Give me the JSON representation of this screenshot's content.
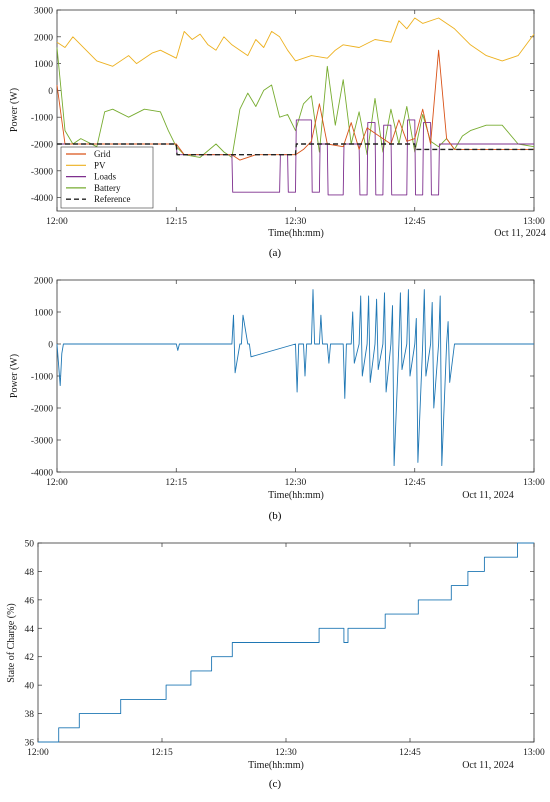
{
  "colors": {
    "grid": "#d95319",
    "pv": "#edb120",
    "loads": "#7e2f8e",
    "battery": "#77ac30",
    "reference": "#222222",
    "panel_b": "#1f77b4",
    "panel_c": "#1f77b4"
  },
  "chart_data": [
    {
      "type": "line",
      "caption": "(a)",
      "xlabel": "Time(hh:mm)",
      "ylabel": "Power (W)",
      "date_label": "Oct 11, 2024",
      "xlim": [
        "12:00",
        "13:00"
      ],
      "ylim": [
        -4500,
        3000
      ],
      "x_ticks": [
        "12:00",
        "12:15",
        "12:30",
        "12:45",
        "13:00"
      ],
      "y_ticks": [
        -4000,
        -3000,
        -2000,
        -1000,
        0,
        1000,
        2000,
        3000
      ],
      "legend_position": "bottom-left",
      "series": [
        {
          "name": "Grid",
          "x": [
            "12:00",
            "12:01",
            "12:05",
            "12:10",
            "12:15",
            "12:16",
            "12:20",
            "12:22",
            "12:23",
            "12:25",
            "12:28",
            "12:30",
            "12:31",
            "12:32",
            "12:33",
            "12:34",
            "12:36",
            "12:37",
            "12:38",
            "12:39",
            "12:40",
            "12:41",
            "12:42",
            "12:43",
            "12:44",
            "12:45",
            "12:46",
            "12:47",
            "12:48",
            "12:49",
            "12:50",
            "12:55",
            "13:00"
          ],
          "y": [
            200,
            -2000,
            -2000,
            -2000,
            -2000,
            -2400,
            -2400,
            -2400,
            -2600,
            -2400,
            -2400,
            -2400,
            -2200,
            -1900,
            -500,
            -2000,
            -2100,
            -1200,
            -2200,
            -1400,
            -1600,
            -1800,
            -2000,
            -1100,
            -1900,
            -1800,
            -700,
            -2000,
            1500,
            -1800,
            -2200,
            -2200,
            -2200
          ]
        },
        {
          "name": "PV",
          "x": [
            "12:00",
            "12:01",
            "12:02",
            "12:03",
            "12:05",
            "12:07",
            "12:09",
            "12:10",
            "12:12",
            "12:13",
            "12:15",
            "12:16",
            "12:17",
            "12:18",
            "12:19",
            "12:20",
            "12:21",
            "12:22",
            "12:23",
            "12:24",
            "12:25",
            "12:26",
            "12:27",
            "12:28",
            "12:29",
            "12:30",
            "12:32",
            "12:34",
            "12:35",
            "12:36",
            "12:38",
            "12:40",
            "12:42",
            "12:43",
            "12:44",
            "12:45",
            "12:46",
            "12:48",
            "12:50",
            "12:52",
            "12:54",
            "12:56",
            "12:58",
            "13:00"
          ],
          "y": [
            1800,
            1600,
            2000,
            1700,
            1100,
            900,
            1300,
            1000,
            1400,
            1500,
            1200,
            2200,
            1900,
            2100,
            1700,
            1500,
            2000,
            1700,
            1500,
            1300,
            1900,
            1600,
            2200,
            2000,
            1500,
            1100,
            1300,
            1200,
            1500,
            1700,
            1600,
            1900,
            1800,
            2600,
            2300,
            2700,
            2500,
            2700,
            2300,
            1700,
            1300,
            1100,
            1300,
            2100
          ]
        },
        {
          "name": "Loads",
          "x": [
            "12:00",
            "12:15",
            "12:15.1",
            "12:22",
            "12:22.1",
            "12:28",
            "12:28.1",
            "12:29",
            "12:29.1",
            "12:30",
            "12:30.1",
            "12:32",
            "12:32.1",
            "12:33",
            "12:33.1",
            "12:34",
            "12:34.1",
            "12:36",
            "12:36.1",
            "12:38",
            "12:38.1",
            "12:39",
            "12:39.1",
            "12:40",
            "12:40.1",
            "12:41",
            "12:41.1",
            "12:42",
            "12:42.1",
            "12:44",
            "12:44.1",
            "12:45",
            "12:45.1",
            "12:46",
            "12:46.1",
            "12:47",
            "12:47.1",
            "12:48",
            "12:48.1",
            "12:49",
            "12:49.1",
            "13:00"
          ],
          "y": [
            -2000,
            -2000,
            -2400,
            -2400,
            -3800,
            -3800,
            -2400,
            -2400,
            -3800,
            -3800,
            -1100,
            -1100,
            -3800,
            -3800,
            -2000,
            -2000,
            -3900,
            -3900,
            -2000,
            -2000,
            -3900,
            -3900,
            -1200,
            -1200,
            -3900,
            -3900,
            -1300,
            -1300,
            -3900,
            -3900,
            -1100,
            -1100,
            -3900,
            -3900,
            -1200,
            -1200,
            -3900,
            -3900,
            -2000,
            -2000,
            -2000,
            -2000
          ]
        },
        {
          "name": "Battery",
          "x": [
            "12:00",
            "12:01",
            "12:02",
            "12:03",
            "12:05",
            "12:06",
            "12:07",
            "12:09",
            "12:11",
            "12:13",
            "12:14",
            "12:15",
            "12:16",
            "12:18",
            "12:20",
            "12:21",
            "12:22",
            "12:23",
            "12:24",
            "12:25",
            "12:26",
            "12:27",
            "12:28",
            "12:29",
            "12:30",
            "12:31",
            "12:32",
            "12:33",
            "12:34",
            "12:35",
            "12:36",
            "12:37",
            "12:38",
            "12:39",
            "12:40",
            "12:41",
            "12:42",
            "12:43",
            "12:44",
            "12:45",
            "12:46",
            "12:47",
            "12:48",
            "12:49",
            "12:50",
            "12:51",
            "12:52",
            "12:54",
            "12:56",
            "12:58",
            "13:00"
          ],
          "y": [
            1600,
            -1500,
            -2000,
            -1800,
            -2100,
            -800,
            -700,
            -1000,
            -700,
            -800,
            -1500,
            -2100,
            -2400,
            -2500,
            -2000,
            -2300,
            -2500,
            -700,
            -100,
            -600,
            0,
            200,
            -1000,
            -900,
            -1500,
            -500,
            -200,
            -2300,
            900,
            -1300,
            400,
            -2000,
            -800,
            -2400,
            -300,
            -2300,
            -700,
            -2000,
            -600,
            -2300,
            -900,
            -1900,
            -2100,
            -1800,
            -2200,
            -1700,
            -1500,
            -1300,
            -1300,
            -2000,
            -2100
          ]
        },
        {
          "name": "Reference",
          "x": [
            "12:00",
            "12:15",
            "12:15.1",
            "12:30",
            "12:30.1",
            "12:45",
            "12:45.1",
            "13:00"
          ],
          "y": [
            -2000,
            -2000,
            -2400,
            -2400,
            -2000,
            -2000,
            -2200,
            -2200
          ]
        }
      ]
    },
    {
      "type": "line",
      "caption": "(b)",
      "xlabel": "Time(hh:mm)",
      "ylabel": "Power (W)",
      "date_label": "Oct 11, 2024",
      "xlim": [
        "12:00",
        "13:00"
      ],
      "ylim": [
        -4000,
        2000
      ],
      "x_ticks": [
        "12:00",
        "12:15",
        "12:30",
        "12:45",
        "13:00"
      ],
      "y_ticks": [
        -4000,
        -3000,
        -2000,
        -1000,
        0,
        1000,
        2000
      ],
      "series": [
        {
          "x": [
            "12:00",
            "12:00.4",
            "12:00.6",
            "12:00.8",
            "12:01",
            "12:15",
            "12:15.2",
            "12:15.4",
            "12:22",
            "12:22.2",
            "12:22.4",
            "12:23",
            "12:23.2",
            "12:23.4",
            "12:24",
            "12:24.2",
            "12:24.4",
            "12:30",
            "12:30.2",
            "12:30.4",
            "12:31",
            "12:31.2",
            "12:31.4",
            "12:32",
            "12:32.2",
            "12:32.4",
            "12:33",
            "12:33.2",
            "12:33.4",
            "12:34",
            "12:34.2",
            "12:34.4",
            "12:36",
            "12:36.2",
            "12:36.4",
            "12:37",
            "12:37.2",
            "12:37.4",
            "12:38",
            "12:38.2",
            "12:38.4",
            "12:39",
            "12:39.2",
            "12:39.4",
            "12:40",
            "12:40.2",
            "12:40.4",
            "12:41",
            "12:41.2",
            "12:41.4",
            "12:42",
            "12:42.2",
            "12:42.4",
            "12:43",
            "12:43.2",
            "12:43.4",
            "12:44",
            "12:44.2",
            "12:44.4",
            "12:45",
            "12:45.2",
            "12:45.4",
            "12:46",
            "12:46.2",
            "12:46.4",
            "12:47",
            "12:47.2",
            "12:47.4",
            "12:48",
            "12:48.2",
            "12:48.4",
            "12:49",
            "12:49.2",
            "12:49.4",
            "12:50",
            "12:55",
            "13:00"
          ],
          "y": [
            0,
            -1300,
            -300,
            0,
            0,
            0,
            -200,
            0,
            0,
            900,
            -900,
            0,
            0,
            900,
            0,
            0,
            -400,
            0,
            -1500,
            0,
            0,
            -1000,
            0,
            0,
            1700,
            0,
            0,
            900,
            0,
            0,
            -600,
            0,
            0,
            -1700,
            0,
            0,
            1000,
            -600,
            0,
            1500,
            -1000,
            0,
            1500,
            -1200,
            0,
            1400,
            -800,
            0,
            1600,
            -1500,
            0,
            1200,
            -3800,
            0,
            1600,
            -800,
            0,
            1700,
            -1000,
            0,
            800,
            -3700,
            0,
            1700,
            -1000,
            0,
            1300,
            -2000,
            0,
            1500,
            -3800,
            0,
            700,
            -1200,
            0,
            0,
            0
          ]
        }
      ]
    },
    {
      "type": "line",
      "caption": "(c)",
      "xlabel": "Time(hh:mm)",
      "ylabel": "State of Charge (%)",
      "date_label": "Oct 11, 2024",
      "xlim": [
        "12:00",
        "13:00"
      ],
      "ylim": [
        36,
        50
      ],
      "x_ticks": [
        "12:00",
        "12:15",
        "12:30",
        "12:45",
        "13:00"
      ],
      "y_ticks": [
        36,
        38,
        40,
        42,
        44,
        46,
        48,
        50
      ],
      "series": [
        {
          "x": [
            "12:00",
            "12:02.5",
            "12:05",
            "12:10",
            "12:15.5",
            "12:18.5",
            "12:21",
            "12:23.5",
            "12:34",
            "12:37",
            "12:37.5",
            "12:42",
            "12:46",
            "12:50",
            "12:52",
            "12:54",
            "12:58"
          ],
          "y": [
            36,
            37,
            38,
            39,
            40,
            41,
            42,
            43,
            44,
            43,
            44,
            45,
            46,
            47,
            48,
            49,
            50
          ]
        }
      ]
    }
  ]
}
